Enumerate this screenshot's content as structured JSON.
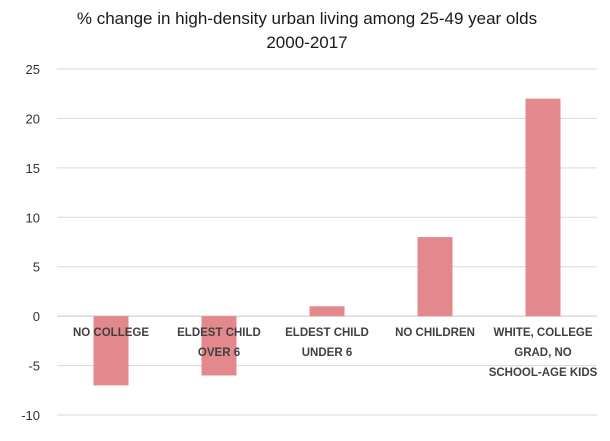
{
  "chart_data": {
    "type": "bar",
    "title_lines": [
      "% change in high-density urban living among 25-49 year olds",
      "2000-2017"
    ],
    "xlabel": "",
    "ylabel": "",
    "categories": [
      [
        "NO COLLEGE"
      ],
      [
        "ELDEST CHILD",
        "OVER 6"
      ],
      [
        "ELDEST CHILD",
        "UNDER 6"
      ],
      [
        "NO CHILDREN"
      ],
      [
        "WHITE, COLLEGE",
        "GRAD, NO",
        "SCHOOL-AGE KIDS"
      ]
    ],
    "values": [
      -7,
      -6,
      1,
      8,
      22
    ],
    "ylim": [
      -10,
      25
    ],
    "yticks": [
      -10,
      -5,
      0,
      5,
      10,
      15,
      20,
      25
    ],
    "grid": true,
    "legend": "none",
    "bar_color": "#e3888d"
  }
}
